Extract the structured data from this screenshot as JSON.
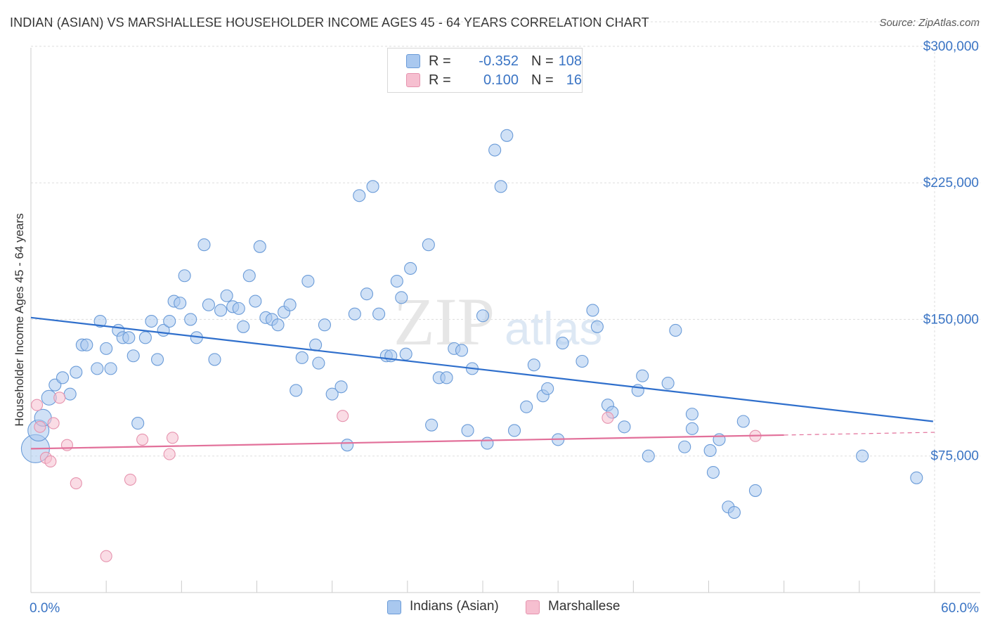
{
  "title": "INDIAN (ASIAN) VS MARSHALLESE HOUSEHOLDER INCOME AGES 45 - 64 YEARS CORRELATION CHART",
  "source": "Source: ZipAtlas.com",
  "watermark": {
    "zip": "ZIP",
    "atlas": "atlas"
  },
  "colors": {
    "blue_fill": "#a9c8ef",
    "blue_stroke": "#6a9bd8",
    "blue_line": "#2f6fcc",
    "pink_fill": "#f6bfd0",
    "pink_stroke": "#e693ae",
    "pink_line": "#e2709a",
    "axis_text": "#3a74c4",
    "grid": "#dddddd"
  },
  "legend": {
    "rows": [
      {
        "r_label": "R =",
        "r_value": "-0.352",
        "n_label": "N =",
        "n_value": "108",
        "color": "blue"
      },
      {
        "r_label": "R =",
        "r_value": "0.100",
        "n_label": "N =",
        "n_value": "16",
        "color": "pink"
      }
    ]
  },
  "bottom_legend": [
    {
      "label": "Indians (Asian)",
      "color": "blue"
    },
    {
      "label": "Marshallese",
      "color": "pink"
    }
  ],
  "chart_data": {
    "type": "scatter",
    "title": "INDIAN (ASIAN) VS MARSHALLESE HOUSEHOLDER INCOME AGES 45 - 64 YEARS CORRELATION CHART",
    "xlabel": "",
    "ylabel": "Householder Income Ages 45 - 64 years",
    "xlim": [
      0,
      60
    ],
    "ylim": [
      0,
      315000
    ],
    "x_tick_labels": [
      "0.0%",
      "60.0%"
    ],
    "y_ticks": [
      75000,
      150000,
      225000,
      300000
    ],
    "y_tick_labels": [
      "$75,000",
      "$150,000",
      "$225,000",
      "$300,000"
    ],
    "grid": true,
    "series": [
      {
        "name": "Indians (Asian)",
        "color": "blue",
        "points": [
          [
            0.3,
            79000
          ],
          [
            0.5,
            89000
          ],
          [
            0.8,
            96000
          ],
          [
            1.2,
            107000
          ],
          [
            1.6,
            114000
          ],
          [
            2.1,
            118000
          ],
          [
            2.6,
            109000
          ],
          [
            3.0,
            121000
          ],
          [
            3.4,
            136000
          ],
          [
            3.7,
            136000
          ],
          [
            4.4,
            123000
          ],
          [
            4.6,
            149000
          ],
          [
            5.0,
            134000
          ],
          [
            5.3,
            123000
          ],
          [
            5.8,
            144000
          ],
          [
            6.1,
            140000
          ],
          [
            6.5,
            140000
          ],
          [
            6.8,
            130000
          ],
          [
            7.1,
            93000
          ],
          [
            7.6,
            140000
          ],
          [
            8.0,
            149000
          ],
          [
            8.4,
            128000
          ],
          [
            8.8,
            144000
          ],
          [
            9.2,
            149000
          ],
          [
            9.5,
            160000
          ],
          [
            9.9,
            159000
          ],
          [
            10.2,
            174000
          ],
          [
            10.6,
            150000
          ],
          [
            11.0,
            140000
          ],
          [
            11.5,
            191000
          ],
          [
            11.8,
            158000
          ],
          [
            12.2,
            128000
          ],
          [
            12.6,
            155000
          ],
          [
            13.0,
            163000
          ],
          [
            13.4,
            157000
          ],
          [
            13.8,
            156000
          ],
          [
            14.1,
            146000
          ],
          [
            14.5,
            174000
          ],
          [
            14.9,
            160000
          ],
          [
            15.2,
            190000
          ],
          [
            15.6,
            151000
          ],
          [
            16.0,
            150000
          ],
          [
            16.4,
            147000
          ],
          [
            16.8,
            154000
          ],
          [
            17.2,
            158000
          ],
          [
            17.6,
            111000
          ],
          [
            18.0,
            129000
          ],
          [
            18.4,
            171000
          ],
          [
            18.9,
            136000
          ],
          [
            19.1,
            126000
          ],
          [
            19.5,
            147000
          ],
          [
            20.0,
            109000
          ],
          [
            20.6,
            113000
          ],
          [
            21.0,
            81000
          ],
          [
            21.5,
            153000
          ],
          [
            21.8,
            218000
          ],
          [
            22.3,
            164000
          ],
          [
            22.7,
            223000
          ],
          [
            23.1,
            153000
          ],
          [
            23.6,
            130000
          ],
          [
            23.9,
            130000
          ],
          [
            24.3,
            171000
          ],
          [
            24.6,
            162000
          ],
          [
            24.9,
            131000
          ],
          [
            25.2,
            178000
          ],
          [
            26.4,
            191000
          ],
          [
            26.6,
            92000
          ],
          [
            27.1,
            118000
          ],
          [
            27.6,
            118000
          ],
          [
            28.1,
            134000
          ],
          [
            28.6,
            133000
          ],
          [
            29.0,
            89000
          ],
          [
            29.3,
            123000
          ],
          [
            30.0,
            152000
          ],
          [
            30.3,
            82000
          ],
          [
            30.8,
            243000
          ],
          [
            31.2,
            223000
          ],
          [
            31.6,
            251000
          ],
          [
            32.1,
            89000
          ],
          [
            32.9,
            102000
          ],
          [
            33.4,
            125000
          ],
          [
            34.0,
            108000
          ],
          [
            34.3,
            112000
          ],
          [
            35.0,
            84000
          ],
          [
            35.3,
            137000
          ],
          [
            36.6,
            127000
          ],
          [
            37.3,
            155000
          ],
          [
            37.6,
            146000
          ],
          [
            38.3,
            103000
          ],
          [
            38.6,
            99000
          ],
          [
            39.4,
            91000
          ],
          [
            40.3,
            111000
          ],
          [
            40.6,
            119000
          ],
          [
            41.0,
            75000
          ],
          [
            42.3,
            115000
          ],
          [
            42.8,
            144000
          ],
          [
            43.4,
            80000
          ],
          [
            43.9,
            98000
          ],
          [
            43.9,
            90000
          ],
          [
            45.1,
            78000
          ],
          [
            45.3,
            66000
          ],
          [
            45.7,
            84000
          ],
          [
            46.3,
            47000
          ],
          [
            46.7,
            44000
          ],
          [
            47.3,
            94000
          ],
          [
            48.1,
            56000
          ],
          [
            55.2,
            75000
          ],
          [
            58.8,
            63000
          ]
        ]
      },
      {
        "name": "Marshallese",
        "color": "pink",
        "points": [
          [
            0.4,
            103000
          ],
          [
            0.6,
            91000
          ],
          [
            1.0,
            74000
          ],
          [
            1.3,
            72000
          ],
          [
            1.5,
            93000
          ],
          [
            1.9,
            107000
          ],
          [
            2.4,
            81000
          ],
          [
            3.0,
            60000
          ],
          [
            5.0,
            20000
          ],
          [
            6.6,
            62000
          ],
          [
            7.4,
            84000
          ],
          [
            9.2,
            76000
          ],
          [
            9.4,
            85000
          ],
          [
            20.7,
            97000
          ],
          [
            38.3,
            96000
          ],
          [
            48.1,
            86000
          ]
        ]
      }
    ],
    "trend_lines": [
      {
        "series": "Indians (Asian)",
        "x": [
          0,
          59.9
        ],
        "y": [
          151000,
          94000
        ],
        "style": "solid"
      },
      {
        "series": "Marshallese",
        "x": [
          0,
          50
        ],
        "y": [
          79000,
          86500
        ],
        "style": "solid"
      },
      {
        "series": "Marshallese",
        "x": [
          50,
          60
        ],
        "y": [
          86500,
          88000
        ],
        "style": "dashed"
      }
    ]
  }
}
